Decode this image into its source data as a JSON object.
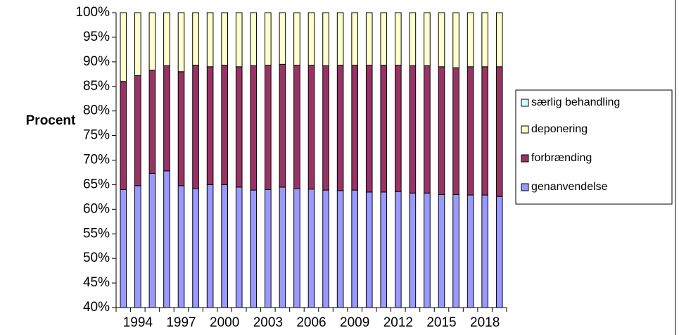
{
  "chart_data": {
    "type": "stacked_bar_100",
    "y_label": "Procent",
    "categories": [
      null,
      "1994",
      null,
      null,
      "1997",
      null,
      null,
      "2000",
      null,
      null,
      "2003",
      null,
      null,
      "2006",
      null,
      null,
      "2009",
      null,
      null,
      "2012",
      null,
      null,
      "2015",
      null,
      null,
      "2018",
      null
    ],
    "series": [
      {
        "name": "genanvendelse",
        "color": "#9999ff",
        "values": [
          64,
          64.8,
          67.3,
          67.8,
          64.8,
          64.2,
          65,
          65,
          64.5,
          63.9,
          64,
          64.5,
          64.2,
          64.1,
          63.9,
          63.8,
          63.9,
          63.5,
          63.5,
          63.6,
          63.3,
          63.3,
          63,
          63,
          62.9,
          62.9,
          62.6
        ]
      },
      {
        "name": "forbrænding",
        "color": "#993366",
        "values": [
          22,
          22.4,
          21,
          21.4,
          23.2,
          25.1,
          24,
          24.3,
          24.5,
          25.3,
          25.3,
          25,
          25.1,
          25.2,
          25.3,
          25.5,
          25.4,
          25.8,
          25.8,
          25.7,
          25.9,
          25.9,
          26,
          25.8,
          26.1,
          26.1,
          26.4
        ]
      },
      {
        "name": "deponering",
        "color": "#ffffcc",
        "values": [
          14,
          12.8,
          11.7,
          10.8,
          12,
          10.7,
          11,
          10.7,
          11,
          10.8,
          10.7,
          10.5,
          10.7,
          10.7,
          10.8,
          10.7,
          10.7,
          10.7,
          10.7,
          10.7,
          10.8,
          10.8,
          11,
          11.2,
          11,
          11,
          11
        ]
      },
      {
        "name": "særlig behandling",
        "color": "#ccffff",
        "values": [
          0,
          0,
          0,
          0,
          0,
          0,
          0,
          0,
          0,
          0,
          0,
          0,
          0,
          0,
          0,
          0,
          0,
          0,
          0,
          0,
          0,
          0,
          0,
          0,
          0,
          0,
          0
        ]
      }
    ],
    "ylim": [
      40,
      100
    ],
    "yticks": [
      {
        "value": 40,
        "label": "40%"
      },
      {
        "value": 45,
        "label": "45%"
      },
      {
        "value": 50,
        "label": "50%"
      },
      {
        "value": 55,
        "label": "55%"
      },
      {
        "value": 60,
        "label": "60%"
      },
      {
        "value": 65,
        "label": "65%"
      },
      {
        "value": 70,
        "label": "70%"
      },
      {
        "value": 75,
        "label": "75%"
      },
      {
        "value": 80,
        "label": "80%"
      },
      {
        "value": 85,
        "label": "85%"
      },
      {
        "value": 90,
        "label": "90%"
      },
      {
        "value": 95,
        "label": "95%"
      },
      {
        "value": 100,
        "label": "100%"
      }
    ],
    "legend": "right"
  }
}
